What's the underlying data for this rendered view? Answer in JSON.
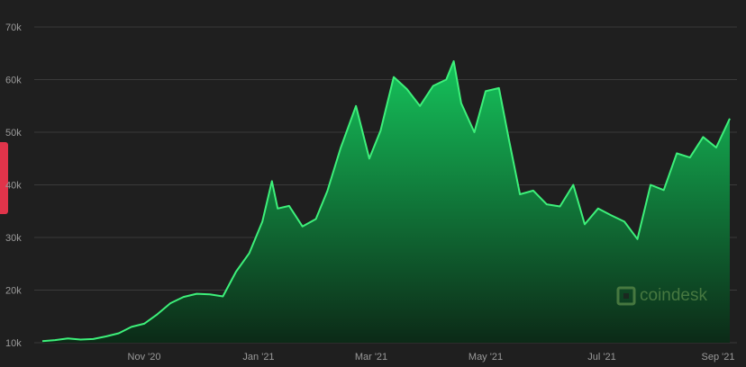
{
  "watermark": {
    "brand": "coindesk"
  },
  "colors": {
    "background": "#1f1f1f",
    "line": "#3df07a",
    "area_top": "#15c35b",
    "area_bottom": "#0c2a17",
    "grid": "#3a3a3a",
    "tick_text": "#9a9a9a",
    "tab_accent": "#e0344a"
  },
  "chart_data": {
    "type": "area",
    "title": "",
    "xlabel": "",
    "ylabel": "",
    "x_ticks": [
      "Nov '20",
      "Jan '21",
      "Mar '21",
      "May '21",
      "Jul '21",
      "Sep '21"
    ],
    "y_ticks": [
      "10k",
      "20k",
      "30k",
      "40k",
      "50k",
      "60k",
      "70k"
    ],
    "ylim": [
      10000,
      70000
    ],
    "grid": true,
    "series": [
      {
        "x": [
          "2020-09-06",
          "2020-09-13",
          "2020-09-20",
          "2020-09-27",
          "2020-10-04",
          "2020-10-11",
          "2020-10-18",
          "2020-10-25",
          "2020-11-01",
          "2020-11-08",
          "2020-11-15",
          "2020-11-22",
          "2020-11-29",
          "2020-12-06",
          "2020-12-13",
          "2020-12-20",
          "2020-12-27",
          "2021-01-03",
          "2021-01-08",
          "2021-01-11",
          "2021-01-17",
          "2021-01-24",
          "2021-01-31",
          "2021-02-06",
          "2021-02-13",
          "2021-02-21",
          "2021-02-28",
          "2021-03-06",
          "2021-03-13",
          "2021-03-20",
          "2021-03-27",
          "2021-04-03",
          "2021-04-10",
          "2021-04-14",
          "2021-04-18",
          "2021-04-25",
          "2021-05-01",
          "2021-05-08",
          "2021-05-13",
          "2021-05-19",
          "2021-05-26",
          "2021-06-02",
          "2021-06-09",
          "2021-06-16",
          "2021-06-22",
          "2021-06-29",
          "2021-07-06",
          "2021-07-13",
          "2021-07-20",
          "2021-07-27",
          "2021-08-03",
          "2021-08-10",
          "2021-08-17",
          "2021-08-24",
          "2021-08-31",
          "2021-09-06"
        ],
        "y": [
          10300,
          10500,
          10800,
          10600,
          10700,
          11200,
          11800,
          13000,
          13600,
          15400,
          17500,
          18700,
          19300,
          19200,
          18800,
          23500,
          27000,
          33000,
          40700,
          35500,
          36000,
          32100,
          33500,
          38800,
          47000,
          55000,
          45000,
          50300,
          60500,
          58200,
          55000,
          58800,
          60000,
          63500,
          55500,
          50000,
          57800,
          58400,
          49000,
          38200,
          38900,
          36300,
          35900,
          40000,
          32500,
          35500,
          34200,
          33000,
          29700,
          40000,
          39000,
          46000,
          45200,
          49100,
          47100,
          52600
        ]
      }
    ]
  }
}
